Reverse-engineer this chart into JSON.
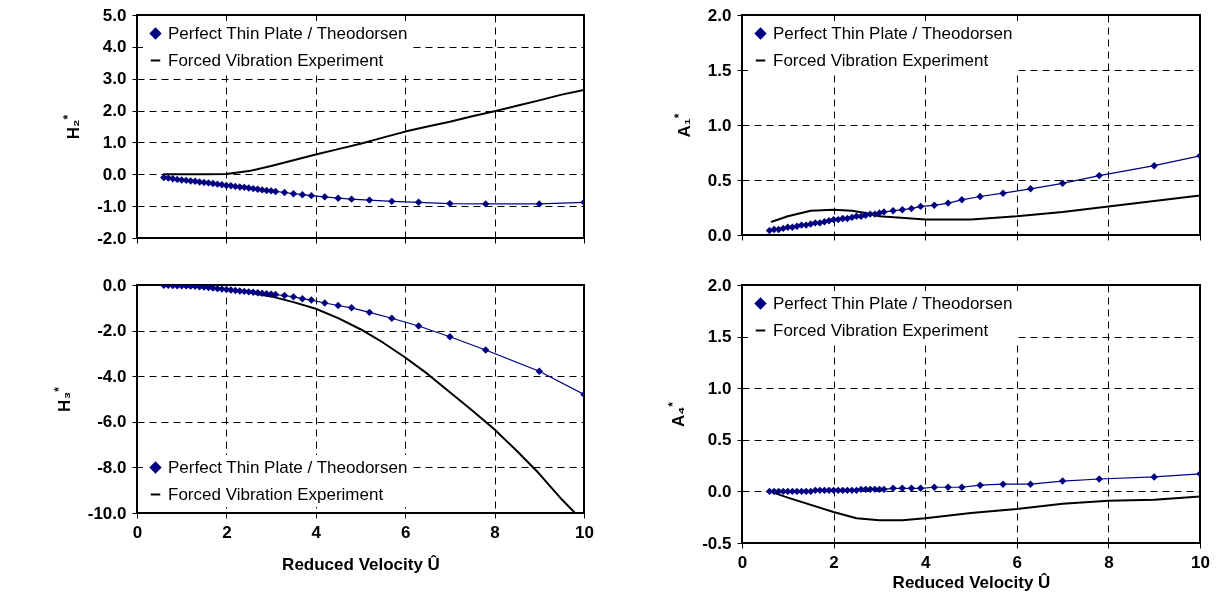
{
  "chart_data": [
    {
      "type": "line",
      "ylabel": "H₂$^{*}$",
      "xlim": [
        0,
        10
      ],
      "xticks": [
        0,
        2,
        4,
        6,
        8,
        10
      ],
      "ylim": [
        -2,
        5
      ],
      "yticks": [
        {
          "value": -2,
          "label": "-2.0"
        },
        {
          "value": -1,
          "label": "-1.0"
        },
        {
          "value": 0,
          "label": "0.0"
        },
        {
          "value": 1,
          "label": "1.0"
        },
        {
          "value": 2,
          "label": "2.0"
        },
        {
          "value": 3,
          "label": "3.0"
        },
        {
          "value": 4,
          "label": "4.0"
        },
        {
          "value": 5,
          "label": "5.0"
        }
      ],
      "grid": true,
      "legend": "top left",
      "tick_labels": "y",
      "series": [
        {
          "name": "Perfect Thin Plate / Theodorsen",
          "color": "#000080",
          "marker": "diamond",
          "x": [
            0.6,
            0.7,
            0.8,
            0.9,
            1.0,
            1.1,
            1.2,
            1.3,
            1.4,
            1.5,
            1.6,
            1.7,
            1.8,
            1.9,
            2.0,
            2.1,
            2.2,
            2.3,
            2.4,
            2.5,
            2.6,
            2.7,
            2.8,
            2.9,
            3.0,
            3.1,
            3.3,
            3.5,
            3.7,
            3.9,
            4.2,
            4.5,
            4.8,
            5.2,
            5.7,
            6.3,
            7.0,
            7.8,
            9.0,
            10.0
          ],
          "values": [
            -0.1,
            -0.12,
            -0.14,
            -0.16,
            -0.18,
            -0.19,
            -0.21,
            -0.22,
            -0.24,
            -0.26,
            -0.27,
            -0.29,
            -0.31,
            -0.33,
            -0.35,
            -0.36,
            -0.38,
            -0.4,
            -0.41,
            -0.43,
            -0.45,
            -0.47,
            -0.49,
            -0.51,
            -0.52,
            -0.54,
            -0.57,
            -0.61,
            -0.64,
            -0.67,
            -0.71,
            -0.75,
            -0.78,
            -0.81,
            -0.85,
            -0.88,
            -0.92,
            -0.93,
            -0.93,
            -0.88
          ]
        },
        {
          "name": "Forced Vibration Experiment",
          "color": "#000000",
          "marker": "none",
          "x": [
            0.6,
            1,
            1.5,
            2,
            2.5,
            3,
            3.5,
            4,
            4.5,
            5,
            5.5,
            6,
            6.5,
            7,
            7.5,
            8,
            8.5,
            9,
            9.5,
            10
          ],
          "values": [
            0,
            0,
            0,
            0.01,
            0.1,
            0.26,
            0.44,
            0.62,
            0.79,
            0.96,
            1.15,
            1.34,
            1.5,
            1.65,
            1.82,
            1.98,
            2.15,
            2.32,
            2.5,
            2.65
          ]
        }
      ]
    },
    {
      "type": "line",
      "ylabel": "A₁$^{*}$",
      "xlim": [
        0,
        10
      ],
      "xticks": [
        0,
        2,
        4,
        6,
        8,
        10
      ],
      "ylim": [
        0,
        2
      ],
      "yticks": [
        {
          "value": 0,
          "label": "0.0"
        },
        {
          "value": 0.5,
          "label": "0.5"
        },
        {
          "value": 1,
          "label": "1.0"
        },
        {
          "value": 1.5,
          "label": "1.5"
        },
        {
          "value": 2,
          "label": "2.0"
        }
      ],
      "grid": true,
      "legend": "top left",
      "tick_labels": "y",
      "series": [
        {
          "name": "Perfect Thin Plate / Theodorsen",
          "color": "#000080",
          "marker": "diamond",
          "x": [
            0.6,
            0.7,
            0.8,
            0.9,
            1.0,
            1.1,
            1.2,
            1.3,
            1.4,
            1.5,
            1.6,
            1.7,
            1.8,
            1.9,
            2.0,
            2.1,
            2.2,
            2.3,
            2.4,
            2.5,
            2.6,
            2.7,
            2.8,
            2.9,
            3.0,
            3.1,
            3.3,
            3.5,
            3.7,
            3.9,
            4.2,
            4.5,
            4.8,
            5.2,
            5.7,
            6.3,
            7.0,
            7.8,
            9.0,
            10.0
          ],
          "values": [
            0.04,
            0.05,
            0.05,
            0.06,
            0.07,
            0.07,
            0.08,
            0.09,
            0.09,
            0.1,
            0.11,
            0.11,
            0.12,
            0.13,
            0.14,
            0.14,
            0.15,
            0.15,
            0.16,
            0.17,
            0.17,
            0.18,
            0.19,
            0.19,
            0.2,
            0.21,
            0.22,
            0.23,
            0.24,
            0.26,
            0.27,
            0.29,
            0.32,
            0.35,
            0.38,
            0.42,
            0.47,
            0.54,
            0.63,
            0.72
          ]
        },
        {
          "name": "Forced Vibration Experiment",
          "color": "#000000",
          "marker": "none",
          "x": [
            0.65,
            1,
            1.5,
            2,
            2.4,
            2.7,
            3,
            3.7,
            4,
            5,
            6,
            7,
            8,
            9,
            10
          ],
          "values": [
            0.12,
            0.17,
            0.22,
            0.23,
            0.22,
            0.2,
            0.17,
            0.15,
            0.14,
            0.14,
            0.17,
            0.21,
            0.26,
            0.31,
            0.36
          ]
        }
      ]
    },
    {
      "type": "line",
      "ylabel": "H₃$^{*}$",
      "xlabel": "Reduced Velocity Û",
      "xlim": [
        0,
        10
      ],
      "xticks": [
        0,
        2,
        4,
        6,
        8,
        10
      ],
      "ylim": [
        -10,
        0
      ],
      "yticks": [
        {
          "value": -10,
          "label": "-10.0"
        },
        {
          "value": -8,
          "label": "-8.0"
        },
        {
          "value": -6,
          "label": "-6.0"
        },
        {
          "value": -4,
          "label": "-4.0"
        },
        {
          "value": -2,
          "label": "-2.0"
        },
        {
          "value": 0,
          "label": "0.0"
        }
      ],
      "grid": true,
      "legend": "bottom left",
      "series": [
        {
          "name": "Perfect Thin Plate / Theodorsen",
          "color": "#000080",
          "marker": "diamond",
          "x": [
            0.6,
            0.7,
            0.8,
            0.9,
            1.0,
            1.1,
            1.2,
            1.3,
            1.4,
            1.5,
            1.6,
            1.7,
            1.8,
            1.9,
            2.0,
            2.1,
            2.2,
            2.3,
            2.4,
            2.5,
            2.6,
            2.7,
            2.8,
            2.9,
            3.0,
            3.1,
            3.3,
            3.5,
            3.7,
            3.9,
            4.2,
            4.5,
            4.8,
            5.2,
            5.7,
            6.3,
            7.0,
            7.8,
            9.0,
            10.0
          ],
          "values": [
            -0.01,
            -0.01,
            -0.02,
            -0.03,
            -0.03,
            -0.04,
            -0.05,
            -0.06,
            -0.08,
            -0.09,
            -0.11,
            -0.13,
            -0.16,
            -0.18,
            -0.2,
            -0.22,
            -0.24,
            -0.26,
            -0.28,
            -0.3,
            -0.32,
            -0.34,
            -0.36,
            -0.38,
            -0.4,
            -0.42,
            -0.46,
            -0.52,
            -0.6,
            -0.66,
            -0.79,
            -0.9,
            -1.0,
            -1.2,
            -1.46,
            -1.8,
            -2.27,
            -2.85,
            -3.78,
            -4.8
          ]
        },
        {
          "name": "Forced Vibration Experiment",
          "color": "#000000",
          "marker": "none",
          "x": [
            0.6,
            1,
            1.5,
            2,
            2.5,
            3,
            3.5,
            4,
            4.5,
            5,
            5.5,
            6,
            6.5,
            7,
            7.5,
            8,
            8.5,
            9,
            9.5,
            9.8
          ],
          "values": [
            0,
            -0.02,
            -0.08,
            -0.2,
            -0.33,
            -0.5,
            -0.75,
            -1.04,
            -1.45,
            -1.94,
            -2.52,
            -3.18,
            -3.9,
            -4.7,
            -5.5,
            -6.34,
            -7.28,
            -8.28,
            -9.4,
            -10
          ]
        }
      ]
    },
    {
      "type": "line",
      "ylabel": "A₄$^{*}$",
      "xlabel": "Reduced Velocity Û",
      "xlim": [
        0,
        10
      ],
      "xticks": [
        0,
        2,
        4,
        6,
        8,
        10
      ],
      "ylim": [
        -0.5,
        2
      ],
      "yticks": [
        {
          "value": -0.5,
          "label": "-0.5"
        },
        {
          "value": 0,
          "label": "0.0"
        },
        {
          "value": 0.5,
          "label": "0.5"
        },
        {
          "value": 1,
          "label": "1.0"
        },
        {
          "value": 1.5,
          "label": "1.5"
        },
        {
          "value": 2,
          "label": "2.0"
        }
      ],
      "grid": true,
      "legend": "top left",
      "series": [
        {
          "name": "Perfect Thin Plate / Theodorsen",
          "color": "#000080",
          "marker": "diamond",
          "x": [
            0.6,
            0.7,
            0.8,
            0.9,
            1.0,
            1.1,
            1.2,
            1.3,
            1.4,
            1.5,
            1.6,
            1.7,
            1.8,
            1.9,
            2.0,
            2.1,
            2.2,
            2.3,
            2.4,
            2.5,
            2.6,
            2.7,
            2.8,
            2.9,
            3.0,
            3.1,
            3.3,
            3.5,
            3.7,
            3.9,
            4.2,
            4.5,
            4.8,
            5.2,
            5.7,
            6.3,
            7.0,
            7.8,
            9.0,
            10.0
          ],
          "values": [
            0,
            0,
            0,
            0,
            0,
            0,
            0,
            0,
            0,
            0,
            0.01,
            0.01,
            0.01,
            0.01,
            0.01,
            0.01,
            0.01,
            0.01,
            0.01,
            0.01,
            0.02,
            0.02,
            0.02,
            0.02,
            0.02,
            0.02,
            0.03,
            0.03,
            0.03,
            0.03,
            0.04,
            0.04,
            0.04,
            0.06,
            0.07,
            0.07,
            0.1,
            0.12,
            0.14,
            0.17
          ]
        },
        {
          "name": "Forced Vibration Experiment",
          "color": "#000000",
          "marker": "none",
          "x": [
            0.6,
            1,
            2,
            2.5,
            3,
            3.5,
            4,
            5,
            6,
            7,
            8,
            9,
            10
          ],
          "values": [
            0,
            -0.06,
            -0.2,
            -0.26,
            -0.28,
            -0.28,
            -0.26,
            -0.21,
            -0.17,
            -0.12,
            -0.09,
            -0.08,
            -0.05
          ]
        }
      ]
    }
  ]
}
